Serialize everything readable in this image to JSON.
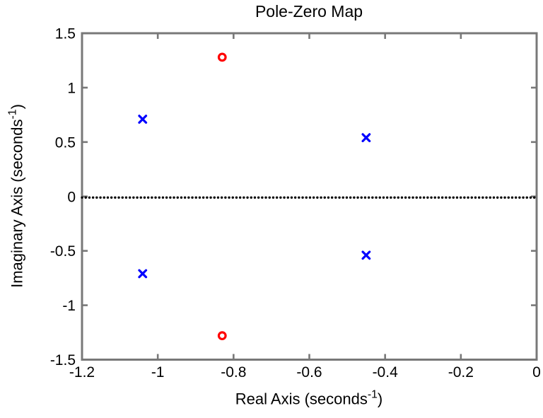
{
  "figure": {
    "background": "#ffffff"
  },
  "chart_data": {
    "type": "scatter",
    "title": "Pole-Zero Map",
    "xlabel": {
      "pre": "Real Axis (seconds",
      "sup": "-1",
      "post": ")"
    },
    "ylabel": {
      "pre": "Imaginary Axis (seconds",
      "sup": "-1",
      "post": ")"
    },
    "xlim": [
      -1.2,
      0
    ],
    "ylim": [
      -1.5,
      1.5
    ],
    "xticks": [
      -1.2,
      -1,
      -0.8,
      -0.6,
      -0.4,
      -0.2,
      0
    ],
    "xtick_labels": [
      "-1.2",
      "-1",
      "-0.8",
      "-0.6",
      "-0.4",
      "-0.2",
      "0"
    ],
    "yticks": [
      -1.5,
      -1,
      -0.5,
      0,
      0.5,
      1,
      1.5
    ],
    "ytick_labels": [
      "-1.5",
      "-1",
      "-0.5",
      "0",
      "0.5",
      "1",
      "1.5"
    ],
    "grid": false,
    "legend": null,
    "axis_color": "#787878",
    "tick_label_color": "#000000",
    "series": [
      {
        "name": "poles",
        "marker": "x",
        "color": "#0000ff",
        "points": [
          {
            "re": -1.04,
            "im": 0.71
          },
          {
            "re": -1.04,
            "im": -0.71
          },
          {
            "re": -0.45,
            "im": 0.54
          },
          {
            "re": -0.45,
            "im": -0.54
          }
        ]
      },
      {
        "name": "zeros",
        "marker": "o",
        "color": "#ff0000",
        "points": [
          {
            "re": -0.83,
            "im": 1.28
          },
          {
            "re": -0.83,
            "im": -1.28
          }
        ]
      },
      {
        "name": "real-axis-dotted-line",
        "marker": "dotted-line",
        "color": "#000000",
        "y": -0.01,
        "x_start": -1.2,
        "x_end": 0
      }
    ]
  }
}
